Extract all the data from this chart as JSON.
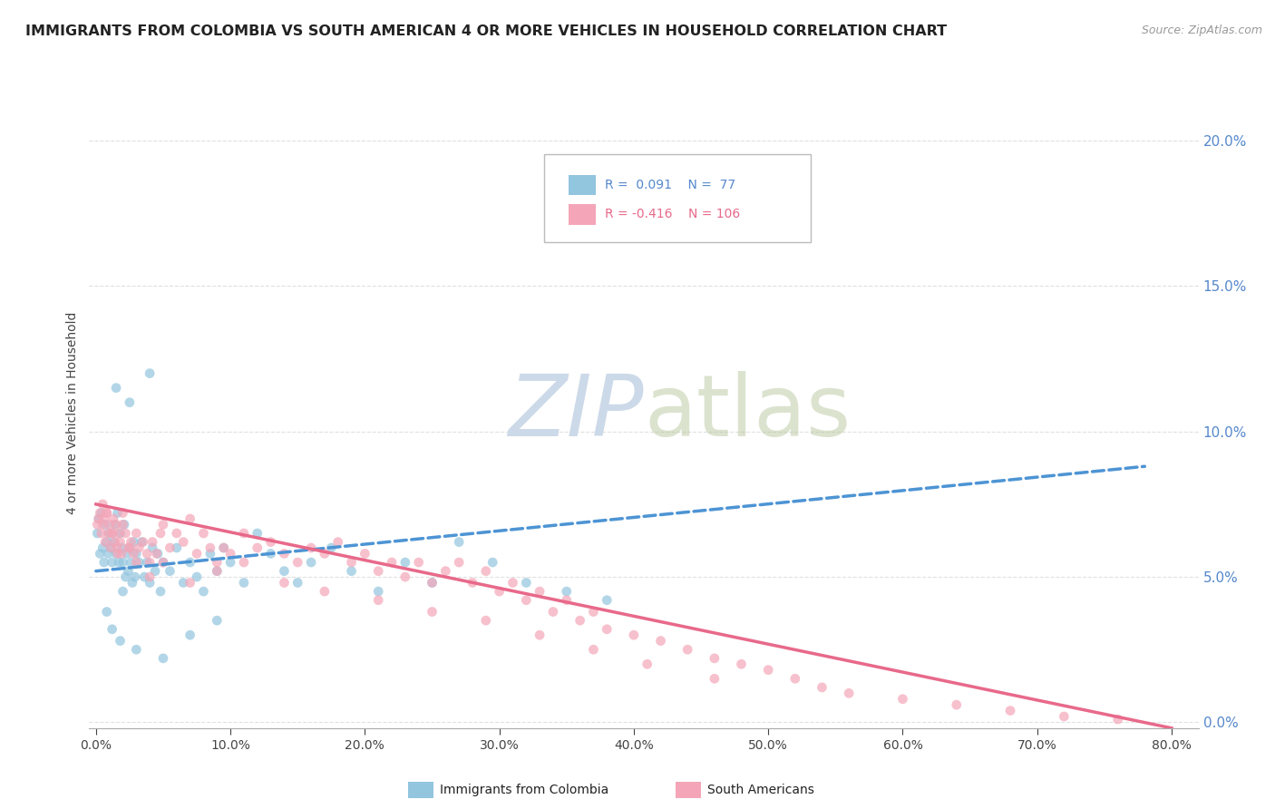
{
  "title": "IMMIGRANTS FROM COLOMBIA VS SOUTH AMERICAN 4 OR MORE VEHICLES IN HOUSEHOLD CORRELATION CHART",
  "source": "Source: ZipAtlas.com",
  "ylabel": "4 or more Vehicles in Household",
  "xlim": [
    -0.005,
    0.82
  ],
  "ylim": [
    -0.002,
    0.215
  ],
  "xticks": [
    0.0,
    0.1,
    0.2,
    0.3,
    0.4,
    0.5,
    0.6,
    0.7,
    0.8
  ],
  "xticklabels": [
    "0.0%",
    "10.0%",
    "20.0%",
    "30.0%",
    "40.0%",
    "50.0%",
    "60.0%",
    "70.0%",
    "80.0%"
  ],
  "yticks_right": [
    0.0,
    0.05,
    0.1,
    0.15,
    0.2
  ],
  "yticklabels_right": [
    "0.0%",
    "5.0%",
    "10.0%",
    "15.0%",
    "20.0%"
  ],
  "legend_r1": "R =  0.091",
  "legend_n1": "N =  77",
  "legend_r2": "R = -0.416",
  "legend_n2": "N = 106",
  "color_blue": "#92c5de",
  "color_pink": "#f4a6b8",
  "color_blue_line": "#4d94d4",
  "color_pink_line": "#e8698a",
  "watermark_color": "#ccd9e8",
  "label1": "Immigrants from Colombia",
  "label2": "South Americans",
  "blue_trend_x0": 0.0,
  "blue_trend_y0": 0.052,
  "blue_trend_x1": 0.78,
  "blue_trend_y1": 0.088,
  "pink_trend_x0": 0.0,
  "pink_trend_y0": 0.075,
  "pink_trend_x1": 0.8,
  "pink_trend_y1": -0.002,
  "blue_scatter_x": [
    0.001,
    0.002,
    0.003,
    0.004,
    0.005,
    0.006,
    0.007,
    0.008,
    0.009,
    0.01,
    0.011,
    0.012,
    0.013,
    0.014,
    0.015,
    0.016,
    0.017,
    0.018,
    0.019,
    0.02,
    0.021,
    0.022,
    0.023,
    0.024,
    0.025,
    0.026,
    0.027,
    0.028,
    0.029,
    0.03,
    0.032,
    0.034,
    0.036,
    0.038,
    0.04,
    0.042,
    0.044,
    0.046,
    0.048,
    0.05,
    0.055,
    0.06,
    0.065,
    0.07,
    0.075,
    0.08,
    0.085,
    0.09,
    0.095,
    0.1,
    0.11,
    0.12,
    0.13,
    0.14,
    0.15,
    0.16,
    0.175,
    0.19,
    0.21,
    0.23,
    0.25,
    0.27,
    0.295,
    0.32,
    0.35,
    0.38,
    0.04,
    0.025,
    0.015,
    0.02,
    0.008,
    0.012,
    0.018,
    0.03,
    0.05,
    0.07,
    0.09
  ],
  "blue_scatter_y": [
    0.065,
    0.07,
    0.058,
    0.072,
    0.06,
    0.055,
    0.068,
    0.062,
    0.058,
    0.065,
    0.06,
    0.055,
    0.062,
    0.068,
    0.058,
    0.072,
    0.055,
    0.065,
    0.06,
    0.055,
    0.068,
    0.05,
    0.058,
    0.052,
    0.06,
    0.055,
    0.048,
    0.062,
    0.05,
    0.058,
    0.055,
    0.062,
    0.05,
    0.055,
    0.048,
    0.06,
    0.052,
    0.058,
    0.045,
    0.055,
    0.052,
    0.06,
    0.048,
    0.055,
    0.05,
    0.045,
    0.058,
    0.052,
    0.06,
    0.055,
    0.048,
    0.065,
    0.058,
    0.052,
    0.048,
    0.055,
    0.06,
    0.052,
    0.045,
    0.055,
    0.048,
    0.062,
    0.055,
    0.048,
    0.045,
    0.042,
    0.12,
    0.11,
    0.115,
    0.045,
    0.038,
    0.032,
    0.028,
    0.025,
    0.022,
    0.03,
    0.035
  ],
  "pink_scatter_x": [
    0.001,
    0.002,
    0.003,
    0.004,
    0.005,
    0.006,
    0.007,
    0.008,
    0.009,
    0.01,
    0.011,
    0.012,
    0.013,
    0.014,
    0.015,
    0.016,
    0.017,
    0.018,
    0.019,
    0.02,
    0.022,
    0.024,
    0.026,
    0.028,
    0.03,
    0.032,
    0.035,
    0.038,
    0.04,
    0.042,
    0.045,
    0.048,
    0.05,
    0.055,
    0.06,
    0.065,
    0.07,
    0.075,
    0.08,
    0.085,
    0.09,
    0.095,
    0.1,
    0.11,
    0.12,
    0.13,
    0.14,
    0.15,
    0.16,
    0.17,
    0.18,
    0.19,
    0.2,
    0.21,
    0.22,
    0.23,
    0.24,
    0.25,
    0.26,
    0.27,
    0.28,
    0.29,
    0.3,
    0.31,
    0.32,
    0.33,
    0.34,
    0.35,
    0.36,
    0.37,
    0.38,
    0.4,
    0.42,
    0.44,
    0.46,
    0.48,
    0.5,
    0.52,
    0.54,
    0.56,
    0.6,
    0.64,
    0.68,
    0.72,
    0.76,
    0.005,
    0.008,
    0.012,
    0.016,
    0.02,
    0.025,
    0.03,
    0.04,
    0.05,
    0.07,
    0.09,
    0.11,
    0.14,
    0.17,
    0.21,
    0.25,
    0.29,
    0.33,
    0.37,
    0.41,
    0.46
  ],
  "pink_scatter_y": [
    0.068,
    0.07,
    0.072,
    0.065,
    0.068,
    0.07,
    0.062,
    0.072,
    0.065,
    0.068,
    0.06,
    0.065,
    0.07,
    0.062,
    0.068,
    0.06,
    0.065,
    0.062,
    0.058,
    0.068,
    0.065,
    0.06,
    0.062,
    0.058,
    0.065,
    0.06,
    0.062,
    0.058,
    0.055,
    0.062,
    0.058,
    0.065,
    0.068,
    0.06,
    0.065,
    0.062,
    0.07,
    0.058,
    0.065,
    0.06,
    0.055,
    0.06,
    0.058,
    0.065,
    0.06,
    0.062,
    0.058,
    0.055,
    0.06,
    0.058,
    0.062,
    0.055,
    0.058,
    0.052,
    0.055,
    0.05,
    0.055,
    0.048,
    0.052,
    0.055,
    0.048,
    0.052,
    0.045,
    0.048,
    0.042,
    0.045,
    0.038,
    0.042,
    0.035,
    0.038,
    0.032,
    0.03,
    0.028,
    0.025,
    0.022,
    0.02,
    0.018,
    0.015,
    0.012,
    0.01,
    0.008,
    0.006,
    0.004,
    0.002,
    0.001,
    0.075,
    0.072,
    0.065,
    0.058,
    0.072,
    0.06,
    0.055,
    0.05,
    0.055,
    0.048,
    0.052,
    0.055,
    0.048,
    0.045,
    0.042,
    0.038,
    0.035,
    0.03,
    0.025,
    0.02,
    0.015
  ]
}
